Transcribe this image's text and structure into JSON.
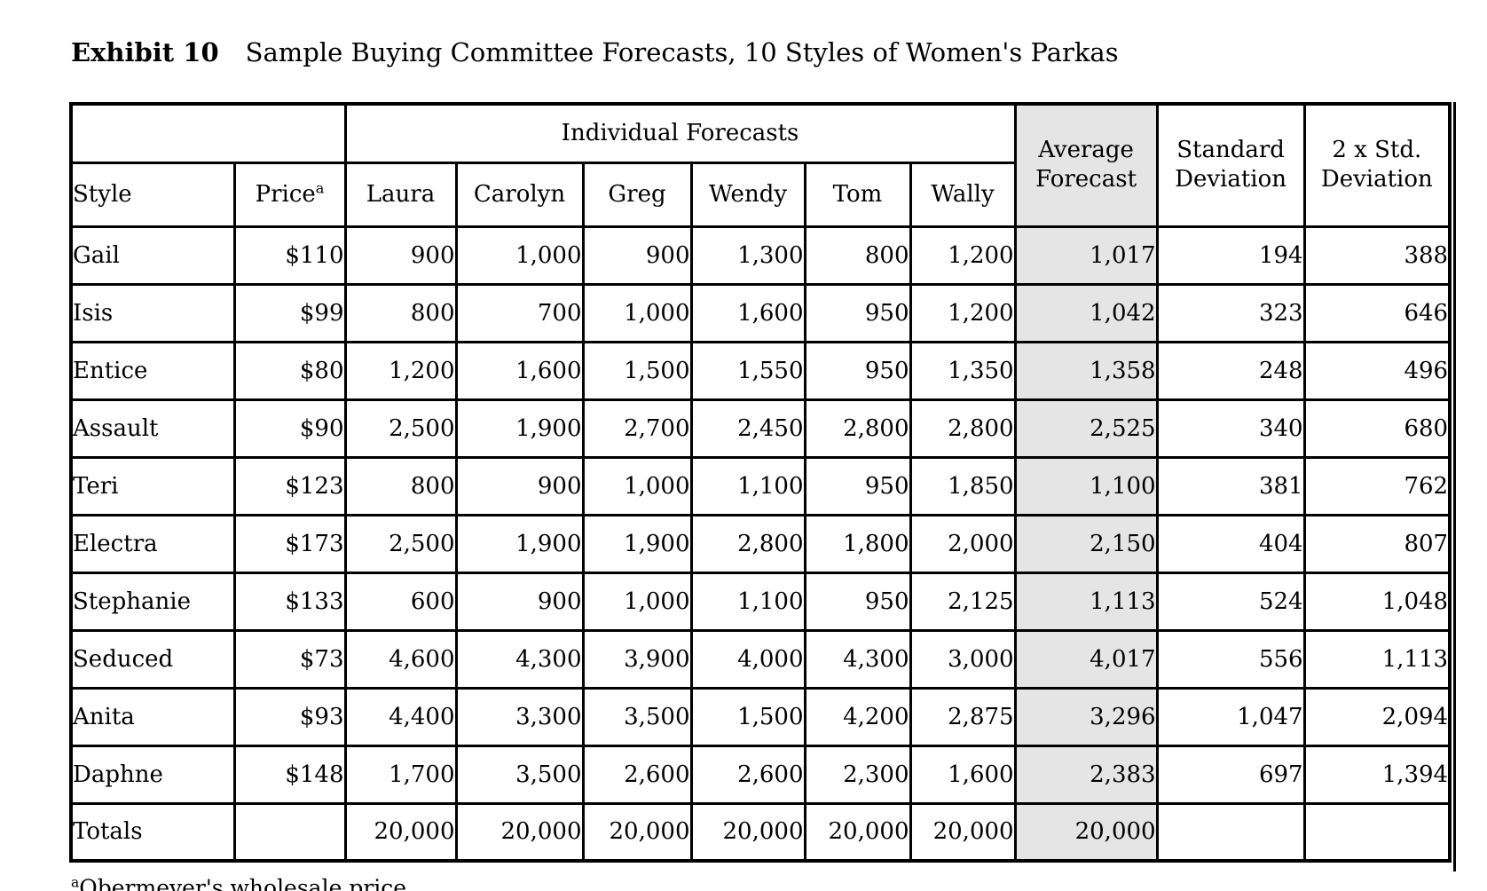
{
  "page": {
    "title_label": "Exhibit 10",
    "title_text": "Sample Buying Committee Forecasts, 10 Styles of Women's Parkas",
    "footnote_superscript": "a",
    "footnote_text": "Obermeyer's wholesale price"
  },
  "colors": {
    "background": "#ffffff",
    "text": "#000000",
    "border": "#000000",
    "shaded_column": "#e5e5e5"
  },
  "table": {
    "header": {
      "individual_forecasts": "Individual Forecasts",
      "style": "Style",
      "price": "Price",
      "price_superscript": "a",
      "forecasters": [
        "Laura",
        "Carolyn",
        "Greg",
        "Wendy",
        "Tom",
        "Wally"
      ],
      "average_forecast": "Average Forecast",
      "standard_deviation": "Standard Deviation",
      "two_std_deviation": "2 x Std. Deviation"
    },
    "rows": [
      {
        "style": "Gail",
        "price": "$110",
        "forecasts": [
          "900",
          "1,000",
          "900",
          "1,300",
          "800",
          "1,200"
        ],
        "average": "1,017",
        "std_dev": "194",
        "two_std_dev": "388"
      },
      {
        "style": "Isis",
        "price": "$99",
        "forecasts": [
          "800",
          "700",
          "1,000",
          "1,600",
          "950",
          "1,200"
        ],
        "average": "1,042",
        "std_dev": "323",
        "two_std_dev": "646"
      },
      {
        "style": "Entice",
        "price": "$80",
        "forecasts": [
          "1,200",
          "1,600",
          "1,500",
          "1,550",
          "950",
          "1,350"
        ],
        "average": "1,358",
        "std_dev": "248",
        "two_std_dev": "496"
      },
      {
        "style": "Assault",
        "price": "$90",
        "forecasts": [
          "2,500",
          "1,900",
          "2,700",
          "2,450",
          "2,800",
          "2,800"
        ],
        "average": "2,525",
        "std_dev": "340",
        "two_std_dev": "680"
      },
      {
        "style": "Teri",
        "price": "$123",
        "forecasts": [
          "800",
          "900",
          "1,000",
          "1,100",
          "950",
          "1,850"
        ],
        "average": "1,100",
        "std_dev": "381",
        "two_std_dev": "762"
      },
      {
        "style": "Electra",
        "price": "$173",
        "forecasts": [
          "2,500",
          "1,900",
          "1,900",
          "2,800",
          "1,800",
          "2,000"
        ],
        "average": "2,150",
        "std_dev": "404",
        "two_std_dev": "807"
      },
      {
        "style": "Stephanie",
        "price": "$133",
        "forecasts": [
          "600",
          "900",
          "1,000",
          "1,100",
          "950",
          "2,125"
        ],
        "average": "1,113",
        "std_dev": "524",
        "two_std_dev": "1,048"
      },
      {
        "style": "Seduced",
        "price": "$73",
        "forecasts": [
          "4,600",
          "4,300",
          "3,900",
          "4,000",
          "4,300",
          "3,000"
        ],
        "average": "4,017",
        "std_dev": "556",
        "two_std_dev": "1,113"
      },
      {
        "style": "Anita",
        "price": "$93",
        "forecasts": [
          "4,400",
          "3,300",
          "3,500",
          "1,500",
          "4,200",
          "2,875"
        ],
        "average": "3,296",
        "std_dev": "1,047",
        "two_std_dev": "2,094"
      },
      {
        "style": "Daphne",
        "price": "$148",
        "forecasts": [
          "1,700",
          "3,500",
          "2,600",
          "2,600",
          "2,300",
          "1,600"
        ],
        "average": "2,383",
        "std_dev": "697",
        "two_std_dev": "1,394"
      },
      {
        "style": "Totals",
        "price": "",
        "forecasts": [
          "20,000",
          "20,000",
          "20,000",
          "20,000",
          "20,000",
          "20,000"
        ],
        "average": "20,000",
        "std_dev": "",
        "two_std_dev": ""
      }
    ]
  }
}
